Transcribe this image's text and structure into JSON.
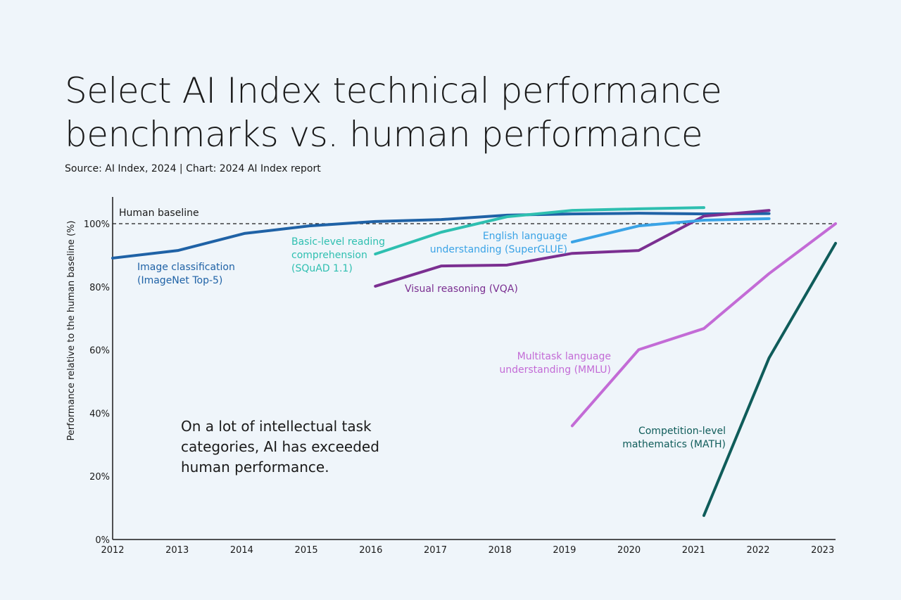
{
  "title": "Select AI Index technical performance benchmarks vs. human performance",
  "source": "Source: AI Index, 2024 | Chart: 2024 AI Index report",
  "annotation": "On a lot of intellectual task categories, AI has exceeded human performance.",
  "chart_data": {
    "type": "line",
    "title": "Select AI Index technical performance benchmarks vs. human performance",
    "xlabel": "",
    "ylabel": "Performance relative to the human baseline (%)",
    "xlim": [
      2012,
      2023.2
    ],
    "ylim": [
      0,
      110
    ],
    "x_ticks": [
      "2012",
      "2013",
      "2014",
      "2015",
      "2016",
      "2017",
      "2018",
      "2019",
      "2020",
      "2021",
      "2022",
      "2023"
    ],
    "y_ticks": [
      "0%",
      "20%",
      "40%",
      "60%",
      "80%",
      "100%"
    ],
    "y_tick_values": [
      0,
      20,
      40,
      60,
      80,
      100
    ],
    "grid": false,
    "reference_line": {
      "label": "Human baseline",
      "value": 100
    },
    "series": [
      {
        "name": "Image classification (ImageNet Top-5)",
        "color": "#1f62a6",
        "x": [
          2012,
          2013.01,
          2014.04,
          2015.05,
          2016.07,
          2017.09,
          2018.11,
          2019.12,
          2020.15,
          2021.16,
          2022.17
        ],
        "y": [
          89.1,
          91.5,
          96.9,
          99.3,
          100.7,
          101.3,
          102.7,
          103.1,
          103.3,
          103.1,
          103.2
        ]
      },
      {
        "name": "Basic-level reading comprehension (SQuAD 1.1)",
        "color": "#2ebfb0",
        "x": [
          2016.07,
          2017.09,
          2018.11,
          2019.12,
          2020.15,
          2021.16
        ],
        "y": [
          90.4,
          97.3,
          102.2,
          104.2,
          104.7,
          105.1
        ]
      },
      {
        "name": "Visual reasoning (VQA)",
        "color": "#7b2f91",
        "x": [
          2016.07,
          2017.09,
          2018.11,
          2019.12,
          2020.15,
          2021.16,
          2022.17
        ],
        "y": [
          80.2,
          86.6,
          86.9,
          90.6,
          91.5,
          102.4,
          104.2
        ]
      },
      {
        "name": "English language understanding (SuperGLUE)",
        "color": "#3aa3e6",
        "x": [
          2019.12,
          2020.15,
          2021.16,
          2022.17
        ],
        "y": [
          94.2,
          99.3,
          101.1,
          101.6
        ]
      },
      {
        "name": "Multitask language understanding (MMLU)",
        "color": "#c36bd6",
        "x": [
          2019.12,
          2020.15,
          2021.16,
          2022.17,
          2023.2
        ],
        "y": [
          36.0,
          60.1,
          66.8,
          84.2,
          100.0
        ]
      },
      {
        "name": "Competition-level mathematics (MATH)",
        "color": "#0f5c5a",
        "x": [
          2021.16,
          2022.17,
          2023.2
        ],
        "y": [
          7.6,
          57.5,
          93.8
        ]
      }
    ]
  }
}
